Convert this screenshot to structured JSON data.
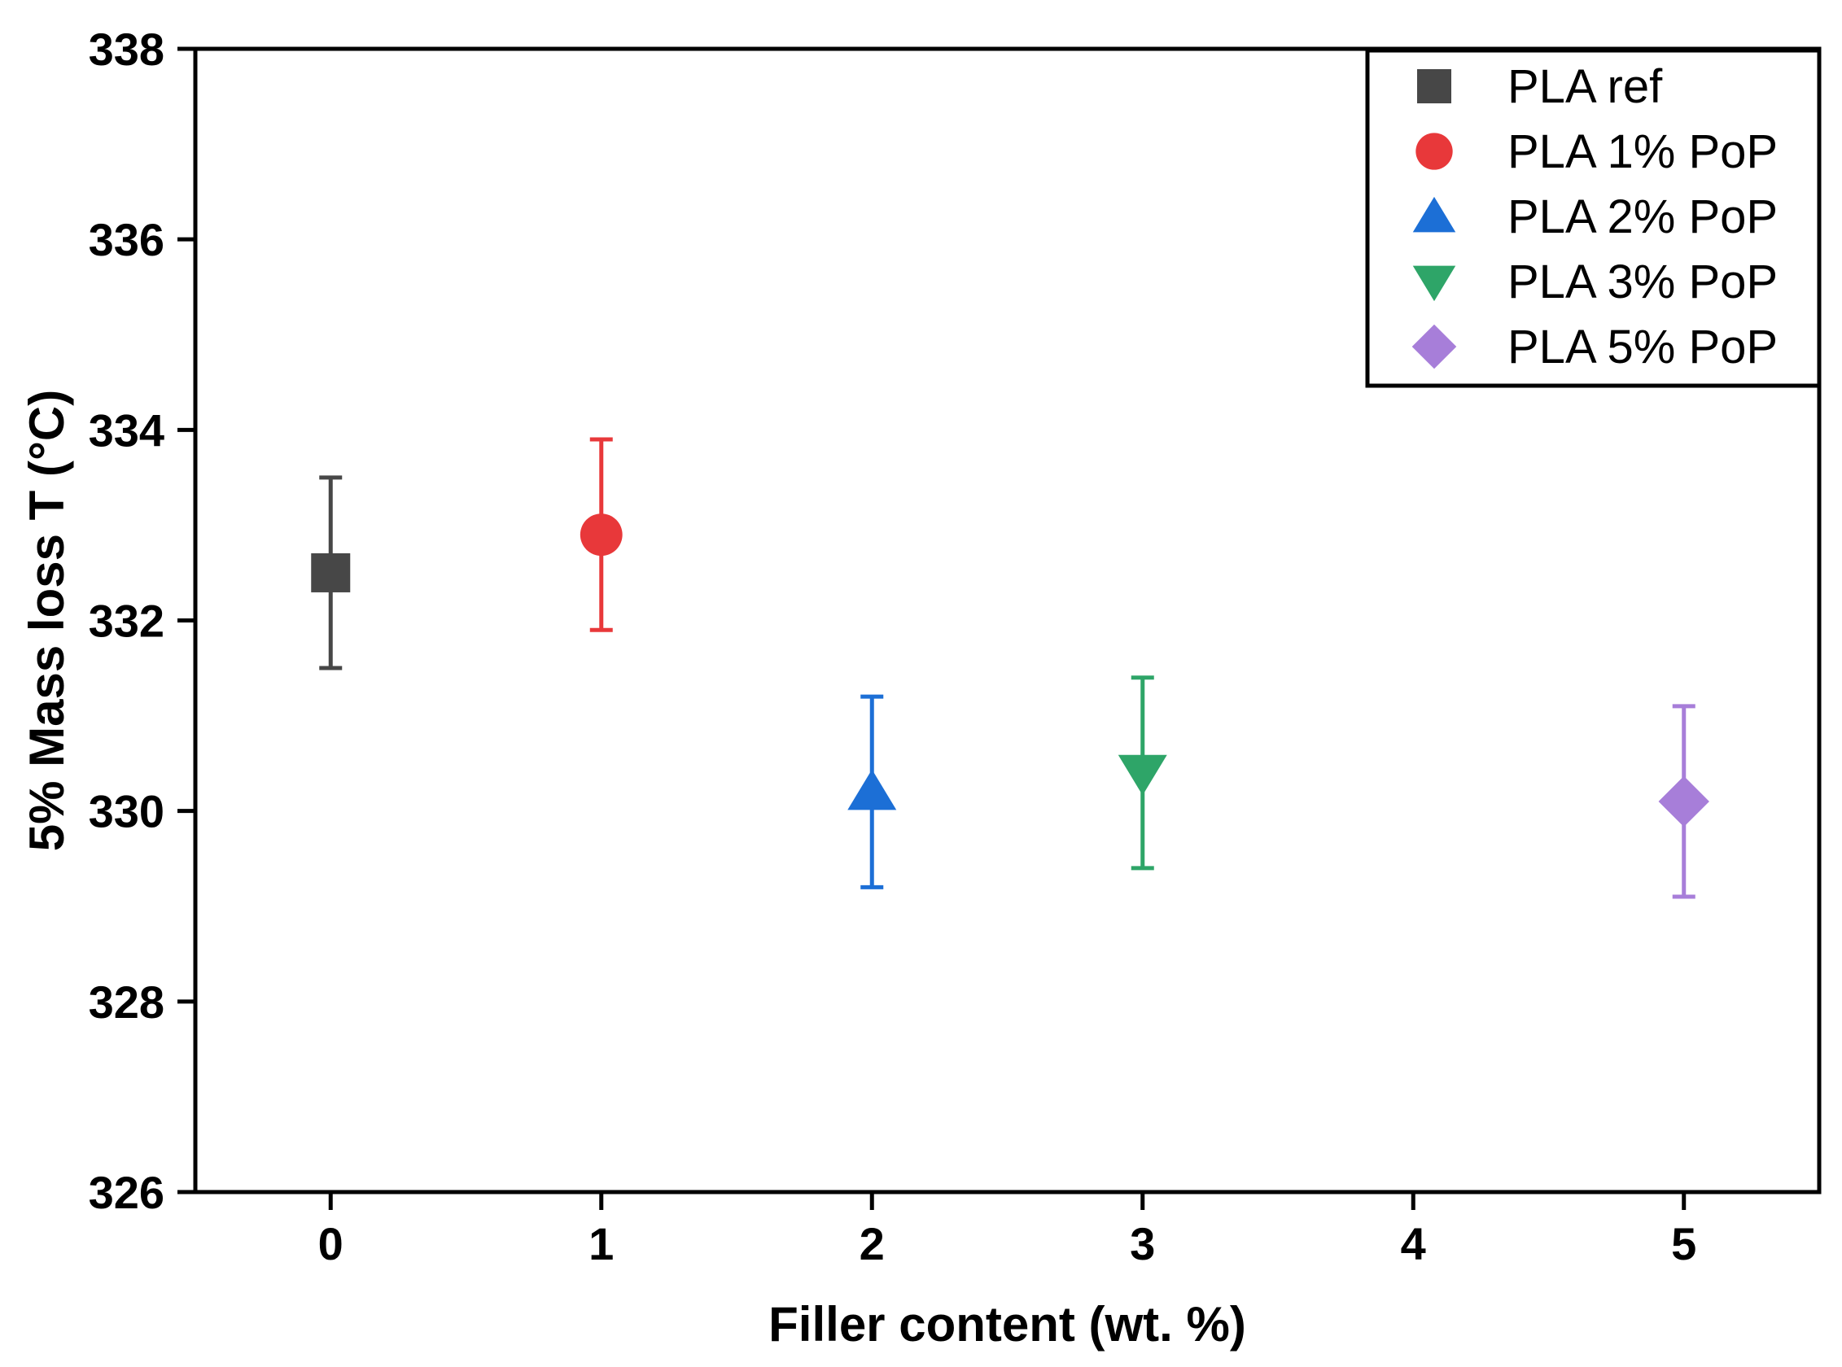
{
  "chart_data": {
    "type": "scatter",
    "xlabel": "Filler content (wt. %)",
    "ylabel": "5% Mass loss T (°C)",
    "xlim": [
      -0.5,
      5.5
    ],
    "ylim": [
      326,
      338
    ],
    "xticks": [
      0,
      1,
      2,
      3,
      4,
      5
    ],
    "yticks": [
      326,
      328,
      330,
      332,
      334,
      336,
      338
    ],
    "legend_position": "top-right",
    "grid": false,
    "series": [
      {
        "name": "PLA ref",
        "marker": "square",
        "color": "#474747",
        "x": 0,
        "y": 332.5,
        "error": 1.0
      },
      {
        "name": "PLA 1% PoP",
        "marker": "circle",
        "color": "#e8383a",
        "x": 1,
        "y": 332.9,
        "error": 1.0
      },
      {
        "name": "PLA 2% PoP",
        "marker": "triangle-up",
        "color": "#1c6fd6",
        "x": 2,
        "y": 330.2,
        "error": 1.0
      },
      {
        "name": "PLA 3% PoP",
        "marker": "triangle-down",
        "color": "#2ea568",
        "x": 3,
        "y": 330.4,
        "error": 1.0
      },
      {
        "name": "PLA 5% PoP",
        "marker": "diamond",
        "color": "#a77ed9",
        "x": 5,
        "y": 330.1,
        "error": 1.0
      }
    ]
  }
}
